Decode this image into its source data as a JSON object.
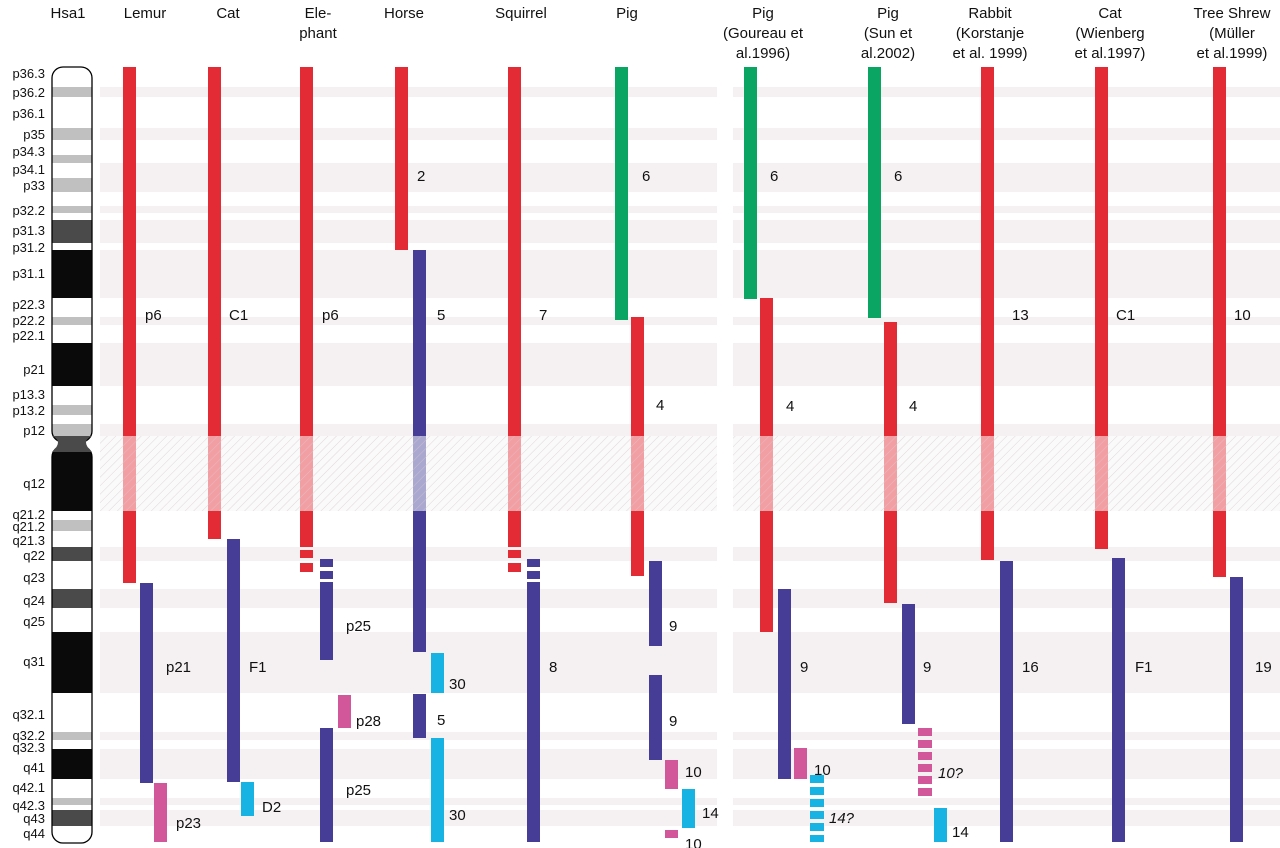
{
  "colors": {
    "red": "#e32b35",
    "green": "#0aa463",
    "purple": "#463e96",
    "magenta": "#d2569a",
    "cyan": "#17b3e2",
    "band_black": "#0a0a0a",
    "band_dark": "#4a4a4a",
    "band_gray": "#c0c0c0",
    "stripe": "#f5f1f2"
  },
  "bands": [
    {
      "name": "p36.3",
      "stain": "white"
    },
    {
      "name": "p36.2",
      "stain": "gray"
    },
    {
      "name": "p36.1",
      "stain": "white"
    },
    {
      "name": "p35",
      "stain": "gray"
    },
    {
      "name": "p34.3",
      "stain": "white"
    },
    {
      "name": "p34.2",
      "stain": "gray",
      "label": ""
    },
    {
      "name": "p34.1",
      "stain": "white"
    },
    {
      "name": "p33",
      "stain": "gray"
    },
    {
      "name": "p32.3",
      "stain": "white",
      "label": ""
    },
    {
      "name": "p32.2",
      "stain": "gray"
    },
    {
      "name": "p32.1",
      "stain": "white",
      "label": ""
    },
    {
      "name": "p31.3",
      "stain": "dark"
    },
    {
      "name": "p31.2",
      "stain": "white"
    },
    {
      "name": "p31.1",
      "stain": "black"
    },
    {
      "name": "p22.3",
      "stain": "white"
    },
    {
      "name": "p22.2",
      "stain": "gray"
    },
    {
      "name": "p22.1",
      "stain": "white"
    },
    {
      "name": "p21",
      "stain": "black"
    },
    {
      "name": "p13.3",
      "stain": "white"
    },
    {
      "name": "p13.2",
      "stain": "gray"
    },
    {
      "name": "p13.1",
      "stain": "white",
      "label": ""
    },
    {
      "name": "p12",
      "stain": "gray"
    },
    {
      "name": "p11",
      "stain": "dark",
      "label": ""
    },
    {
      "name": "q12",
      "stain": "black"
    },
    {
      "name": "q21.2",
      "stain": "white"
    },
    {
      "name": "q21.2b",
      "stain": "gray",
      "label": "q21.2"
    },
    {
      "name": "q21.3",
      "stain": "white"
    },
    {
      "name": "q22",
      "stain": "dark"
    },
    {
      "name": "q23",
      "stain": "white"
    },
    {
      "name": "q24",
      "stain": "dark"
    },
    {
      "name": "q25",
      "stain": "white"
    },
    {
      "name": "q31",
      "stain": "black"
    },
    {
      "name": "q32.1",
      "stain": "white"
    },
    {
      "name": "q32.2",
      "stain": "gray"
    },
    {
      "name": "q32.3",
      "stain": "white"
    },
    {
      "name": "q41",
      "stain": "black"
    },
    {
      "name": "q42.1",
      "stain": "white"
    },
    {
      "name": "q42.2",
      "stain": "gray",
      "label": ""
    },
    {
      "name": "q42.3",
      "stain": "white"
    },
    {
      "name": "q43",
      "stain": "dark"
    },
    {
      "name": "q44",
      "stain": "white"
    }
  ],
  "chromosome": {
    "header": "Hsa1"
  },
  "species": [
    {
      "id": "lemur",
      "header": [
        "Lemur"
      ],
      "segments": [
        {
          "color": "red",
          "from": "p36.3",
          "to": "q23",
          "label": "p6"
        },
        {
          "color": "purple",
          "from": "q24",
          "to": "q41",
          "label": "p21"
        },
        {
          "color": "magenta",
          "from": "q42.1",
          "to": "q44",
          "label": "p23"
        }
      ]
    },
    {
      "id": "cat",
      "header": [
        "Cat"
      ],
      "segments": [
        {
          "color": "red",
          "from": "p36.3",
          "to": "q21.2",
          "label": "C1"
        },
        {
          "color": "purple",
          "from": "q21.3",
          "to": "q41",
          "label": "F1"
        },
        {
          "color": "cyan",
          "from": "q42.1",
          "to": "q42.3",
          "label": "D2"
        }
      ]
    },
    {
      "id": "elephant",
      "header": [
        "Ele-",
        "phant"
      ],
      "segments": [
        {
          "color": "red",
          "from": "p36.3",
          "to": "q21.3",
          "label": "p6"
        },
        {
          "color": "red",
          "from": "q22",
          "to": "q22",
          "label": ""
        },
        {
          "color": "red",
          "from": "q22",
          "to": "q22",
          "label": ""
        },
        {
          "color": "purple",
          "from": "q22",
          "to": "q22",
          "label": ""
        },
        {
          "color": "purple",
          "from": "q23",
          "to": "q23",
          "label": ""
        },
        {
          "color": "purple",
          "from": "q23",
          "to": "q31",
          "label": "p25"
        },
        {
          "color": "magenta",
          "from": "q32.1",
          "to": "q32.1",
          "label": "p28"
        },
        {
          "color": "purple",
          "from": "q32.2",
          "to": "q44",
          "label": "p25"
        }
      ]
    },
    {
      "id": "horse",
      "header": [
        "Horse"
      ],
      "segments": [
        {
          "color": "red",
          "from": "p36.3",
          "to": "p31.2",
          "label": "2"
        },
        {
          "color": "purple",
          "from": "p31.1",
          "to": "q25",
          "label": "5"
        },
        {
          "color": "cyan",
          "from": "q31",
          "to": "q31",
          "label": "30"
        },
        {
          "color": "purple",
          "from": "q32.1",
          "to": "q32.2",
          "label": "5"
        },
        {
          "color": "cyan",
          "from": "q32.3",
          "to": "q44",
          "label": "30"
        }
      ]
    },
    {
      "id": "squirrel",
      "header": [
        "Squirrel"
      ],
      "segments": [
        {
          "color": "red",
          "from": "p36.3",
          "to": "q21.3",
          "label": "7"
        },
        {
          "color": "red",
          "from": "q22",
          "to": "q22",
          "label": ""
        },
        {
          "color": "red",
          "from": "q22",
          "to": "q22",
          "label": ""
        },
        {
          "color": "purple",
          "from": "q22",
          "to": "q22",
          "label": ""
        },
        {
          "color": "purple",
          "from": "q23",
          "to": "q23",
          "label": ""
        },
        {
          "color": "purple",
          "from": "q23",
          "to": "q44",
          "label": "8"
        }
      ]
    },
    {
      "id": "pig",
      "header": [
        "Pig"
      ],
      "segments": [
        {
          "color": "green",
          "from": "p36.3",
          "to": "p22.2",
          "label": "6"
        },
        {
          "color": "red",
          "from": "p22.2",
          "to": "q23",
          "label": "4"
        },
        {
          "color": "purple",
          "from": "q22",
          "to": "q25",
          "label": "9"
        },
        {
          "color": "purple",
          "from": "q31",
          "to": "q32.3",
          "label": "9"
        },
        {
          "color": "magenta",
          "from": "q41",
          "to": "q41",
          "label": "10"
        },
        {
          "color": "cyan",
          "from": "q42.1",
          "to": "q43",
          "label": "14"
        },
        {
          "color": "magenta",
          "from": "q44",
          "to": "q44",
          "label": "10"
        }
      ]
    },
    {
      "id": "pig-goureau",
      "header": [
        "Pig",
        "(Goureau et",
        "al.1996)"
      ],
      "segments": [
        {
          "color": "green",
          "from": "p36.3",
          "to": "p22.3",
          "label": "6"
        },
        {
          "color": "red",
          "from": "p22.3",
          "to": "q25",
          "label": "4"
        },
        {
          "color": "purple",
          "from": "q24",
          "to": "q41",
          "label": "9"
        },
        {
          "color": "magenta",
          "from": "q41",
          "to": "q41",
          "label": "10"
        },
        {
          "color": "cyan",
          "from": "q42.1",
          "to": "q44",
          "label": "14?"
        }
      ]
    },
    {
      "id": "pig-sun",
      "header": [
        "Pig",
        "(Sun et",
        "al.2002)"
      ],
      "segments": [
        {
          "color": "green",
          "from": "p36.3",
          "to": "p22.2",
          "label": "6"
        },
        {
          "color": "red",
          "from": "p22.2",
          "to": "q24",
          "label": "4"
        },
        {
          "color": "purple",
          "from": "q25",
          "to": "q32.1",
          "label": "9"
        },
        {
          "color": "magenta",
          "from": "q32.3",
          "to": "q42.3",
          "label": "10?"
        },
        {
          "color": "cyan",
          "from": "q43",
          "to": "q44",
          "label": "14"
        }
      ]
    },
    {
      "id": "rabbit",
      "header": [
        "Rabbit",
        "(Korstanje",
        "et al. 1999)"
      ],
      "segments": [
        {
          "color": "red",
          "from": "p36.3",
          "to": "q22",
          "label": "13"
        },
        {
          "color": "purple",
          "from": "q23",
          "to": "q44",
          "label": "16"
        }
      ]
    },
    {
      "id": "cat-wienberg",
      "header": [
        "Cat",
        "(Wienberg",
        "et al.1997)"
      ],
      "segments": [
        {
          "color": "red",
          "from": "p36.3",
          "to": "q22",
          "label": "C1"
        },
        {
          "color": "purple",
          "from": "q22",
          "to": "q44",
          "label": "F1"
        }
      ]
    },
    {
      "id": "tree-shrew",
      "header": [
        "Tree Shrew",
        "(Müller",
        "et al.1999)"
      ],
      "segments": [
        {
          "color": "red",
          "from": "p36.3",
          "to": "q23",
          "label": "10"
        },
        {
          "color": "purple",
          "from": "q24",
          "to": "q44",
          "label": "19"
        }
      ]
    }
  ]
}
